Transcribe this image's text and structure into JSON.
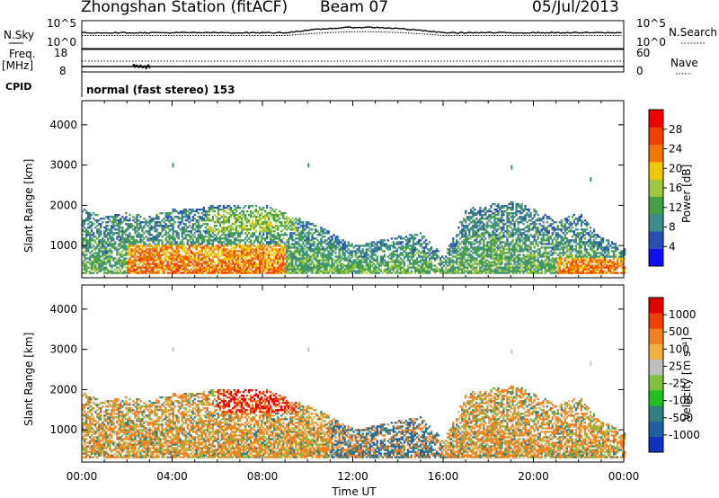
{
  "header": {
    "station": "Zhongshan Station (fitACF)",
    "beam": "Beam 07",
    "date": "05/Jul/2013"
  },
  "top_left": {
    "nsky": "N.Sky",
    "freq_line1": "Freq.",
    "freq_line2": "[MHz]",
    "cpid": "CPID"
  },
  "top_right": {
    "nsearch": "N.Search",
    "nave": "Nave"
  },
  "cpid_text": "normal (fast stereo) 153",
  "noise_axis": {
    "left_ticks": [
      "10^5",
      "10^0"
    ],
    "right_ticks": [
      "10^5",
      "10^0"
    ]
  },
  "freq_axis": {
    "left_ticks": [
      "18",
      "8"
    ],
    "right_ticks": [
      "60",
      "0"
    ]
  },
  "colors": {
    "power_scale": [
      "#1010f0",
      "#2850b4",
      "#3c8c8c",
      "#46a046",
      "#a0c83c",
      "#f0c800",
      "#f07800",
      "#f04000",
      "#f00000"
    ],
    "velocity_scale": [
      "#e00000",
      "#f04000",
      "#f08020",
      "#f0b040",
      "#c0c0c0",
      "#80c040",
      "#20c020",
      "#308080",
      "#2060a0",
      "#1030c0"
    ]
  },
  "chart_data": [
    {
      "type": "heatmap",
      "name": "power",
      "ylabel": "Slant Range [km]",
      "ylim": [
        200,
        4600
      ],
      "yticks": [
        1000,
        2000,
        3000,
        4000
      ],
      "xlim": [
        "00:00",
        "24:00"
      ],
      "colorbar_label": "Power [dB]",
      "colorbar_ticks": [
        "28",
        "24",
        "20",
        "16",
        "12",
        "8",
        "4"
      ]
    },
    {
      "type": "heatmap",
      "name": "velocity",
      "ylabel": "Slant Range [km]",
      "ylim": [
        200,
        4600
      ],
      "yticks": [
        1000,
        2000,
        3000,
        4000
      ],
      "xlim": [
        "00:00",
        "24:00"
      ],
      "xlabel": "Time UT",
      "xticks": [
        "00:00",
        "04:00",
        "08:00",
        "12:00",
        "16:00",
        "20:00",
        "00:00"
      ],
      "colorbar_label": "Velocity [m s⁻¹]",
      "colorbar_ticks": [
        "1000",
        "500",
        "100",
        "25",
        "-25",
        "-100",
        "-500",
        "-1000"
      ]
    }
  ]
}
